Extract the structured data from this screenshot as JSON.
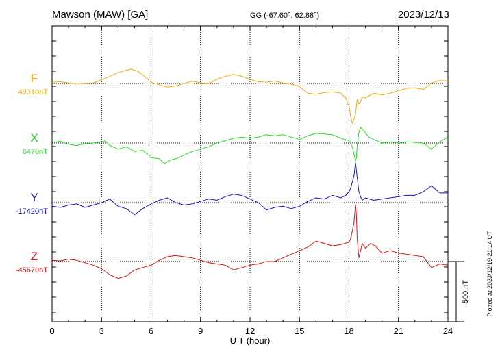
{
  "header": {
    "station": "Mawson (MAW)  [GA]",
    "coords": "GG (-67.60°,  62.88°)",
    "date": "2023/12/13"
  },
  "footer": {
    "plotted": "Plotted at 2023/12/19 21:14 UT"
  },
  "chart_data": {
    "type": "line",
    "xlabel": "U T (hour)",
    "xlim": [
      0,
      24
    ],
    "xticks": [
      "0",
      "3",
      "6",
      "9",
      "12",
      "15",
      "18",
      "21",
      "24"
    ],
    "grid": true,
    "scale_bar": {
      "label": "500 nT",
      "nT": 500
    },
    "series": [
      {
        "name": "F",
        "baseline_label": "49310nT",
        "color": "#f5a800",
        "baseline_nT": 49310,
        "x": [
          0,
          0.5,
          1,
          1.5,
          2,
          2.5,
          3,
          3.5,
          4,
          4.5,
          4.8,
          5.2,
          5.6,
          6,
          6.5,
          7,
          7.5,
          8,
          8.5,
          9,
          9.5,
          10,
          10.5,
          11,
          11.5,
          12,
          12.5,
          13,
          13.5,
          14,
          14.5,
          15,
          15.5,
          16,
          16.5,
          17,
          17.5,
          17.8,
          18,
          18.1,
          18.2,
          18.3,
          18.4,
          18.45,
          18.5,
          18.6,
          18.7,
          18.8,
          19,
          19.5,
          20,
          20.5,
          21,
          21.5,
          22,
          22.5,
          23,
          23.5,
          24
        ],
        "values": [
          49320,
          49325,
          49315,
          49305,
          49312,
          49315,
          49340,
          49370,
          49400,
          49420,
          49430,
          49410,
          49370,
          49320,
          49300,
          49280,
          49290,
          49310,
          49330,
          49315,
          49310,
          49345,
          49370,
          49385,
          49370,
          49345,
          49325,
          49320,
          49330,
          49315,
          49305,
          49285,
          49230,
          49220,
          49235,
          49240,
          49230,
          49190,
          49120,
          49040,
          48980,
          49010,
          49060,
          49120,
          49180,
          49140,
          49160,
          49200,
          49190,
          49230,
          49215,
          49230,
          49250,
          49270,
          49275,
          49260,
          49315,
          49335,
          49330
        ]
      },
      {
        "name": "X",
        "baseline_label": "6470nT",
        "color": "#22dd22",
        "baseline_nT": 6470,
        "x": [
          0,
          0.5,
          1,
          1.5,
          2,
          2.5,
          3,
          3.2,
          3.5,
          4,
          4.5,
          5,
          5.5,
          6,
          6.5,
          6.8,
          7.2,
          7.5,
          8,
          8.5,
          9,
          9.5,
          10,
          10.5,
          11,
          11.5,
          12,
          12.5,
          13,
          13.5,
          14,
          14.5,
          15,
          15.5,
          16,
          16.5,
          17,
          17.5,
          18,
          18.2,
          18.3,
          18.4,
          18.45,
          18.5,
          18.6,
          18.7,
          18.9,
          19.2,
          19.5,
          20,
          20.5,
          21,
          21.5,
          22,
          22.5,
          23,
          23.5,
          24
        ],
        "values": [
          6475,
          6485,
          6460,
          6450,
          6465,
          6470,
          6480,
          6490,
          6450,
          6420,
          6440,
          6400,
          6410,
          6350,
          6340,
          6300,
          6330,
          6340,
          6370,
          6400,
          6420,
          6440,
          6470,
          6490,
          6510,
          6520,
          6510,
          6520,
          6540,
          6530,
          6540,
          6520,
          6500,
          6530,
          6550,
          6545,
          6540,
          6510,
          6490,
          6440,
          6380,
          6320,
          6350,
          6450,
          6560,
          6600,
          6570,
          6520,
          6500,
          6470,
          6480,
          6470,
          6480,
          6475,
          6470,
          6420,
          6480,
          6520
        ]
      },
      {
        "name": "Y",
        "baseline_label": "-17420nT",
        "color": "#1111cc",
        "baseline_nT": -17420,
        "x": [
          0,
          0.5,
          1,
          1.5,
          2,
          2.5,
          3,
          3.5,
          4,
          4.5,
          5,
          5.5,
          6,
          6.5,
          7,
          7.5,
          8,
          8.5,
          9,
          9.5,
          10,
          10.5,
          11,
          11.5,
          12,
          12.5,
          13,
          13.5,
          14,
          14.5,
          15,
          15.5,
          16,
          16.5,
          17,
          17.5,
          17.8,
          18,
          18.1,
          18.2,
          18.3,
          18.4,
          18.5,
          18.6,
          18.7,
          18.8,
          19,
          19.5,
          20,
          20.5,
          21,
          21.5,
          22,
          22.5,
          23,
          23.5,
          24
        ],
        "values": [
          -17450,
          -17460,
          -17440,
          -17430,
          -17460,
          -17440,
          -17420,
          -17390,
          -17450,
          -17470,
          -17520,
          -17470,
          -17430,
          -17400,
          -17380,
          -17420,
          -17440,
          -17430,
          -17410,
          -17390,
          -17400,
          -17370,
          -17350,
          -17360,
          -17390,
          -17420,
          -17480,
          -17460,
          -17450,
          -17470,
          -17450,
          -17410,
          -17380,
          -17390,
          -17360,
          -17380,
          -17360,
          -17330,
          -17300,
          -17250,
          -17200,
          -17090,
          -17210,
          -17330,
          -17370,
          -17400,
          -17380,
          -17400,
          -17390,
          -17380,
          -17370,
          -17360,
          -17360,
          -17330,
          -17280,
          -17340,
          -17340
        ]
      },
      {
        "name": "Z",
        "baseline_label": "-45670nT",
        "color": "#dd1111",
        "baseline_nT": -45670,
        "x": [
          0,
          0.5,
          1,
          1.5,
          2,
          2.5,
          3,
          3.5,
          4,
          4.5,
          5,
          5.5,
          6,
          6.5,
          7,
          7.5,
          8,
          8.5,
          9,
          9.5,
          10,
          10.5,
          11,
          11.5,
          12,
          12.5,
          13,
          13.5,
          14,
          14.5,
          15,
          15.5,
          16,
          16.5,
          17,
          17.5,
          18,
          18.1,
          18.2,
          18.3,
          18.4,
          18.45,
          18.5,
          18.6,
          18.7,
          18.8,
          19,
          19.3,
          19.6,
          20,
          20.5,
          21,
          21.5,
          22,
          22.5,
          23,
          23.5,
          24
        ],
        "values": [
          -45660,
          -45665,
          -45650,
          -45660,
          -45680,
          -45700,
          -45730,
          -45780,
          -45810,
          -45790,
          -45740,
          -45720,
          -45700,
          -45660,
          -45630,
          -45620,
          -45630,
          -45640,
          -45660,
          -45680,
          -45690,
          -45700,
          -45740,
          -45720,
          -45700,
          -45690,
          -45670,
          -45670,
          -45640,
          -45610,
          -45580,
          -45550,
          -45500,
          -45520,
          -45540,
          -45530,
          -45510,
          -45480,
          -45420,
          -45350,
          -45200,
          -45280,
          -45480,
          -45640,
          -45580,
          -45520,
          -45560,
          -45520,
          -45540,
          -45600,
          -45580,
          -45600,
          -45610,
          -45620,
          -45630,
          -45720,
          -45690,
          -45700
        ]
      }
    ]
  }
}
